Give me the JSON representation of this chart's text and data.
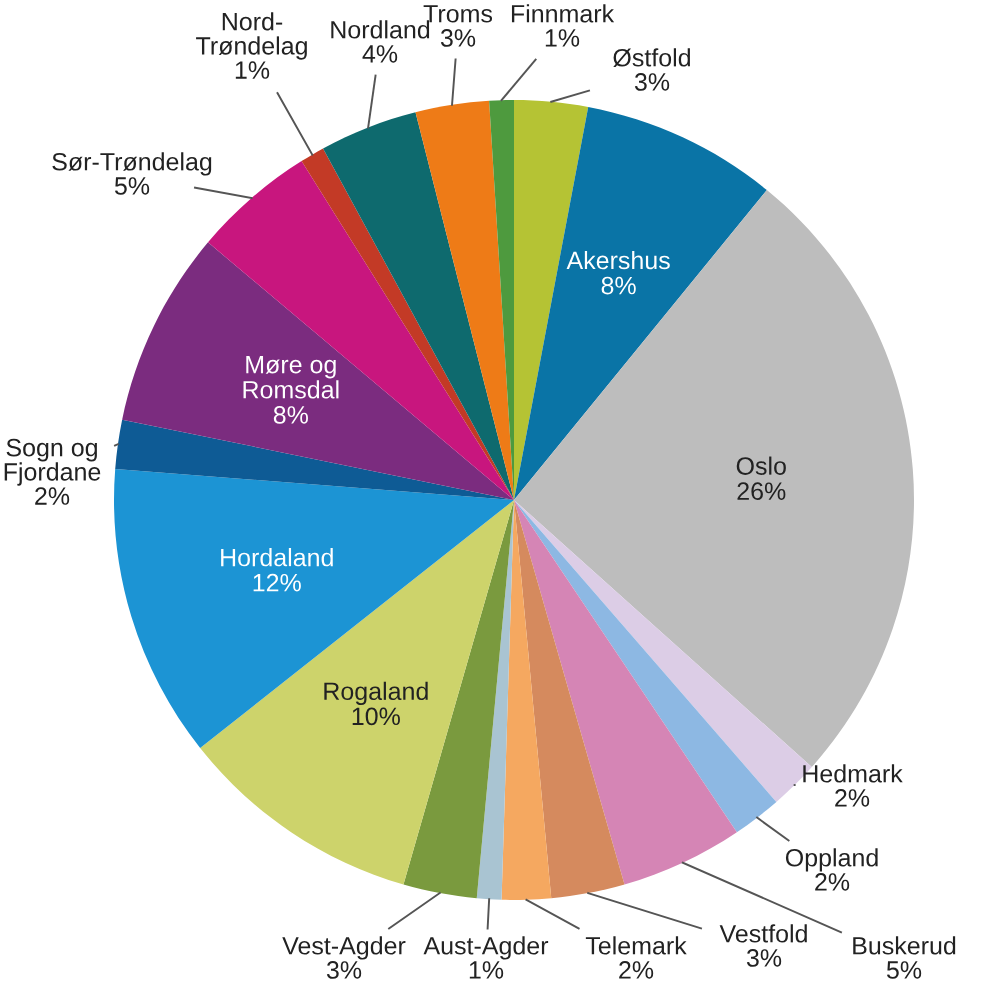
{
  "chart_data": {
    "type": "pie",
    "categories": [
      "Østfold",
      "Akershus",
      "Oslo",
      "Hedmark",
      "Oppland",
      "Buskerud",
      "Vestfold",
      "Telemark",
      "Aust-Agder",
      "Vest-Agder",
      "Rogaland",
      "Hordaland",
      "Sogn og\nFjordane",
      "Møre og\nRomsdal",
      "Sør-Trøndelag",
      "Nord-\nTrøndelag",
      "Nordland",
      "Troms",
      "Finnmark"
    ],
    "values": [
      3,
      8,
      26,
      2,
      2,
      5,
      3,
      2,
      1,
      3,
      10,
      12,
      2,
      8,
      5,
      1,
      4,
      3,
      1
    ],
    "value_labels": [
      "3%",
      "8%",
      "26%",
      "2%",
      "2%",
      "5%",
      "3%",
      "2%",
      "1%",
      "3%",
      "10%",
      "12%",
      "2%",
      "8%",
      "5%",
      "1%",
      "4%",
      "3%",
      "1%"
    ],
    "colors": [
      "#b5c334",
      "#0a74a6",
      "#bdbdbd",
      "#dccde6",
      "#8db8e3",
      "#d585b5",
      "#d58a5e",
      "#f5a860",
      "#a9c4d2",
      "#7a9a3e",
      "#cdd36b",
      "#1c94d4",
      "#0e5b95",
      "#7b2c7f",
      "#c8167e",
      "#c33a26",
      "#0e6a6e",
      "#ee7b17",
      "#4e9a3e"
    ]
  }
}
